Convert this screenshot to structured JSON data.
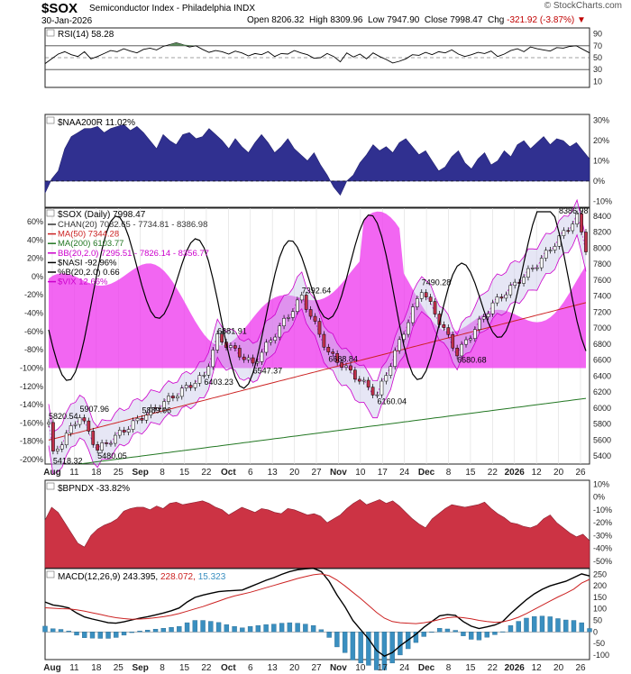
{
  "header": {
    "symbol": "$SOX",
    "name": "Semiconductor Index - Philadelphia",
    "exchange": "INDX",
    "date": "30-Jan-2026",
    "open_label": "Open",
    "open": "8206.32",
    "high_label": "High",
    "high": "8309.96",
    "low_label": "Low",
    "low": "7947.90",
    "close_label": "Close",
    "close": "7998.47",
    "chg_label": "Chg",
    "chg": "-321.92 (-3.87%)",
    "watermark": "© StockCharts.com"
  },
  "colors": {
    "naa": "#303090",
    "bpndx": "#cc3344",
    "macd_hist": "#3a8fc0",
    "vix": "#ee33ee",
    "ma50": "#cc2222",
    "ma200": "#227722",
    "bb": "#cc00cc"
  },
  "x_axis": {
    "labels": [
      "Aug",
      "11",
      "18",
      "25",
      "Sep",
      "8",
      "15",
      "22",
      "Oct",
      "6",
      "13",
      "20",
      "27",
      "Nov",
      "10",
      "17",
      "24",
      "Dec",
      "8",
      "15",
      "22",
      "2026",
      "12",
      "20",
      "26"
    ],
    "bold": [
      "Aug",
      "Sep",
      "Oct",
      "Nov",
      "Dec",
      "2026"
    ]
  },
  "rsi": {
    "label": "RSI(14) 58.28",
    "ticks": [
      "90",
      "70",
      "50",
      "30",
      "10"
    ],
    "values": [
      40,
      48,
      56,
      60,
      55,
      52,
      60,
      48,
      52,
      57,
      62,
      60,
      65,
      61,
      58,
      64,
      66,
      63,
      69,
      72,
      75,
      72,
      68,
      70,
      64,
      59,
      62,
      60,
      56,
      61,
      58,
      53,
      57,
      55,
      60,
      52,
      57,
      56,
      62,
      58,
      55,
      49,
      50,
      57,
      52,
      43,
      58,
      51,
      56,
      48,
      58,
      52,
      47,
      41,
      44,
      48,
      55,
      54,
      59,
      55,
      60,
      58,
      63,
      56,
      52,
      55,
      59,
      57,
      61,
      52,
      56,
      62,
      65,
      60,
      68,
      65,
      63,
      61,
      67,
      66,
      69,
      70,
      64,
      58
    ]
  },
  "naa200r": {
    "label": "$NAA200R 11.02%",
    "ticks": [
      "30%",
      "20%",
      "10%",
      "0%",
      "-10%"
    ],
    "values": [
      -6,
      1,
      5,
      16,
      22,
      24,
      26,
      26,
      27,
      24,
      26,
      27,
      28,
      25,
      27,
      24,
      20,
      16,
      23,
      20,
      18,
      23,
      24,
      21,
      22,
      26,
      23,
      20,
      16,
      21,
      17,
      14,
      19,
      23,
      19,
      14,
      17,
      21,
      16,
      13,
      10,
      14,
      8,
      3,
      -3,
      -7,
      0,
      3,
      9,
      13,
      18,
      15,
      17,
      14,
      19,
      21,
      17,
      13,
      15,
      10,
      5,
      7,
      12,
      15,
      9,
      6,
      11,
      14,
      8,
      10,
      15,
      12,
      18,
      20,
      16,
      19,
      22,
      18,
      21,
      20,
      17,
      19,
      15,
      11
    ]
  },
  "price": {
    "label_main": "$SOX (Daily) 7998.47",
    "legend": [
      {
        "text": "CHAN(20) 7082.65 - 7734.81 - 8386.98",
        "color": "#333"
      },
      {
        "text": "MA(50) 7344.28",
        "color": "#cc2222"
      },
      {
        "text": "MA(200) 6103.77",
        "color": "#227722"
      },
      {
        "text": "BB(20,2.0) 7295.51 - 7826.14 - 8356.77",
        "color": "#cc00cc"
      },
      {
        "text": "$NASI -92.96%",
        "color": "#000"
      },
      {
        "text": "%B(20,2.0) 0.66",
        "color": "#000"
      },
      {
        "text": "$VIX 12.66%",
        "color": "#cc00cc"
      }
    ],
    "left_ticks": [
      "60%",
      "40%",
      "20%",
      "0%",
      "-20%",
      "-40%",
      "-60%",
      "-80%",
      "-100%",
      "-120%",
      "-140%",
      "-160%",
      "-180%",
      "-200%"
    ],
    "right_ticks": [
      "8400",
      "8200",
      "8000",
      "7800",
      "7600",
      "7400",
      "7200",
      "7000",
      "6800",
      "6600",
      "6400",
      "6200",
      "6000",
      "5800",
      "5600",
      "5400"
    ],
    "annotations": [
      {
        "text": "5820.54",
        "value": 5820.54,
        "i": 0,
        "pos": "above"
      },
      {
        "text": "5418.32",
        "value": 5418.32,
        "i": 1,
        "pos": "below"
      },
      {
        "text": "5907.96",
        "value": 5907.96,
        "i": 7,
        "pos": "above"
      },
      {
        "text": "5480.05",
        "value": 5480.05,
        "i": 11,
        "pos": "below"
      },
      {
        "text": "5889.06",
        "value": 5889.06,
        "i": 21,
        "pos": "above"
      },
      {
        "text": "6403.23",
        "value": 6403.23,
        "i": 35,
        "pos": "below"
      },
      {
        "text": "6881.91",
        "value": 6881.91,
        "i": 38,
        "pos": "above"
      },
      {
        "text": "6547.37",
        "value": 6547.37,
        "i": 46,
        "pos": "below"
      },
      {
        "text": "7392.64",
        "value": 7392.64,
        "i": 57,
        "pos": "above"
      },
      {
        "text": "6688.84",
        "value": 6688.84,
        "i": 63,
        "pos": "below"
      },
      {
        "text": "6160.04",
        "value": 6160.04,
        "i": 74,
        "pos": "below"
      },
      {
        "text": "7490.28",
        "value": 7490.28,
        "i": 84,
        "pos": "above"
      },
      {
        "text": "6680.68",
        "value": 6680.68,
        "i": 92,
        "pos": "below"
      },
      {
        "text": "8386.98",
        "value": 8386.98,
        "i": 119,
        "pos": "above"
      }
    ]
  },
  "bpndx": {
    "label": "$BPNDX -33.82%",
    "ticks": [
      "10%",
      "0%",
      "-10%",
      "-20%",
      "-30%",
      "-40%",
      "-50%"
    ],
    "values": [
      -18,
      -8,
      -12,
      -20,
      -28,
      -36,
      -39,
      -30,
      -25,
      -22,
      -20,
      -17,
      -11,
      -9,
      -8,
      -8,
      -10,
      -7,
      -9,
      -5,
      -4,
      -6,
      -5,
      -4,
      -3,
      -5,
      -8,
      -10,
      -14,
      -11,
      -8,
      -10,
      -12,
      -9,
      -10,
      -12,
      -13,
      -9,
      -10,
      -12,
      -14,
      -13,
      -15,
      -20,
      -17,
      -14,
      -9,
      -5,
      -2,
      -6,
      -4,
      -2,
      -5,
      -3,
      -7,
      -12,
      -17,
      -21,
      -24,
      -17,
      -13,
      -9,
      -6,
      -7,
      -8,
      -7,
      -6,
      -4,
      -9,
      -13,
      -16,
      -20,
      -21,
      -23,
      -24,
      -22,
      -17,
      -14,
      -20,
      -24,
      -28,
      -31,
      -29,
      -34
    ]
  },
  "macd": {
    "label_name": "MACD(12,26,9)",
    "label_macd": "243.395",
    "label_signal": "228.072",
    "label_hist": "15.323",
    "ticks": [
      "250",
      "200",
      "150",
      "100",
      "50",
      "0",
      "-50",
      "-100"
    ],
    "macd": [
      130,
      117,
      112,
      104,
      82,
      65,
      56,
      48,
      40,
      38,
      44,
      52,
      60,
      66,
      74,
      82,
      92,
      104,
      130,
      150,
      160,
      168,
      175,
      178,
      180,
      182,
      196,
      210,
      224,
      236,
      250,
      262,
      270,
      274,
      276,
      262,
      220,
      160,
      110,
      50,
      10,
      -30,
      -80,
      -105,
      -90,
      -60,
      -35,
      -10,
      20,
      45,
      70,
      75,
      72,
      45,
      25,
      15,
      22,
      30,
      45,
      80,
      110,
      140,
      165,
      185,
      200,
      210,
      220,
      236,
      252,
      243
    ],
    "signal": [
      105,
      103,
      101,
      100,
      96,
      90,
      83,
      76,
      68,
      62,
      58,
      55,
      56,
      58,
      62,
      66,
      72,
      80,
      90,
      100,
      110,
      122,
      134,
      146,
      156,
      164,
      172,
      182,
      192,
      202,
      212,
      222,
      232,
      240,
      248,
      252,
      244,
      225,
      200,
      172,
      145,
      115,
      85,
      60,
      45,
      40,
      38,
      36,
      40,
      46,
      54,
      62,
      65,
      62,
      57,
      50,
      45,
      42,
      44,
      52,
      64,
      80,
      98,
      116,
      134,
      152,
      168,
      186,
      212,
      228
    ],
    "hist": [
      25,
      14,
      11,
      4,
      -14,
      -25,
      -27,
      -28,
      -28,
      -24,
      -14,
      -3,
      4,
      8,
      12,
      16,
      20,
      24,
      40,
      50,
      50,
      46,
      41,
      32,
      24,
      18,
      24,
      28,
      32,
      34,
      38,
      40,
      38,
      34,
      28,
      10,
      -24,
      -65,
      -90,
      -122,
      -135,
      -145,
      -165,
      -165,
      -135,
      -100,
      -73,
      -46,
      -20,
      -1,
      16,
      13,
      7,
      -17,
      -32,
      -35,
      -23,
      -12,
      1,
      28,
      46,
      60,
      67,
      69,
      66,
      58,
      52,
      50,
      40,
      15
    ]
  }
}
